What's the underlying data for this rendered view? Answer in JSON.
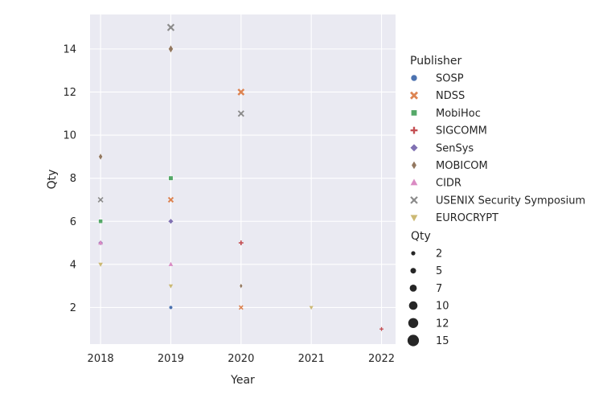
{
  "chart_data": {
    "type": "scatter",
    "xlabel": "Year",
    "ylabel": "Qty",
    "xlim": [
      2017.85,
      2022.2
    ],
    "ylim": [
      0.3,
      15.6
    ],
    "x_ticks": [
      2018,
      2019,
      2020,
      2021,
      2022
    ],
    "y_ticks": [
      2,
      4,
      6,
      8,
      10,
      12,
      14
    ],
    "grid": true,
    "hue_legend_title": "Publisher",
    "size_legend_title": "Qty",
    "size_legend_values": [
      "2",
      "5",
      "7",
      "10",
      "12",
      "15"
    ],
    "legend_placement": "right",
    "series": [
      {
        "name": "SOSP",
        "marker": "circle",
        "color": "#4c72b0",
        "points": [
          {
            "x": 2019,
            "y": 2
          }
        ]
      },
      {
        "name": "NDSS",
        "marker": "x",
        "color": "#dd8452",
        "points": [
          {
            "x": 2019,
            "y": 7
          },
          {
            "x": 2020,
            "y": 12
          },
          {
            "x": 2020,
            "y": 2
          }
        ]
      },
      {
        "name": "MobiHoc",
        "marker": "square",
        "color": "#55a868",
        "points": [
          {
            "x": 2018,
            "y": 6
          },
          {
            "x": 2019,
            "y": 8
          }
        ]
      },
      {
        "name": "SIGCOMM",
        "marker": "plus",
        "color": "#c44e52",
        "points": [
          {
            "x": 2020,
            "y": 5
          },
          {
            "x": 2022,
            "y": 1
          }
        ]
      },
      {
        "name": "SenSys",
        "marker": "diamond",
        "color": "#8172b3",
        "points": [
          {
            "x": 2018,
            "y": 5
          },
          {
            "x": 2019,
            "y": 6
          }
        ]
      },
      {
        "name": "MOBICOM",
        "marker": "thin-diamond",
        "color": "#937860",
        "points": [
          {
            "x": 2018,
            "y": 9
          },
          {
            "x": 2019,
            "y": 14
          },
          {
            "x": 2020,
            "y": 3
          }
        ]
      },
      {
        "name": "CIDR",
        "marker": "triangle-up",
        "color": "#da8bc3",
        "points": [
          {
            "x": 2019,
            "y": 4
          },
          {
            "x": 2018,
            "y": 5
          }
        ]
      },
      {
        "name": "USENIX Security Symposium",
        "marker": "x-star",
        "color": "#8c8c8c",
        "points": [
          {
            "x": 2018,
            "y": 7
          },
          {
            "x": 2019,
            "y": 15
          },
          {
            "x": 2020,
            "y": 11
          }
        ]
      },
      {
        "name": "EUROCRYPT",
        "marker": "triangle-down",
        "color": "#ccb974",
        "points": [
          {
            "x": 2018,
            "y": 4
          },
          {
            "x": 2019,
            "y": 3
          },
          {
            "x": 2021,
            "y": 2
          }
        ]
      }
    ]
  }
}
